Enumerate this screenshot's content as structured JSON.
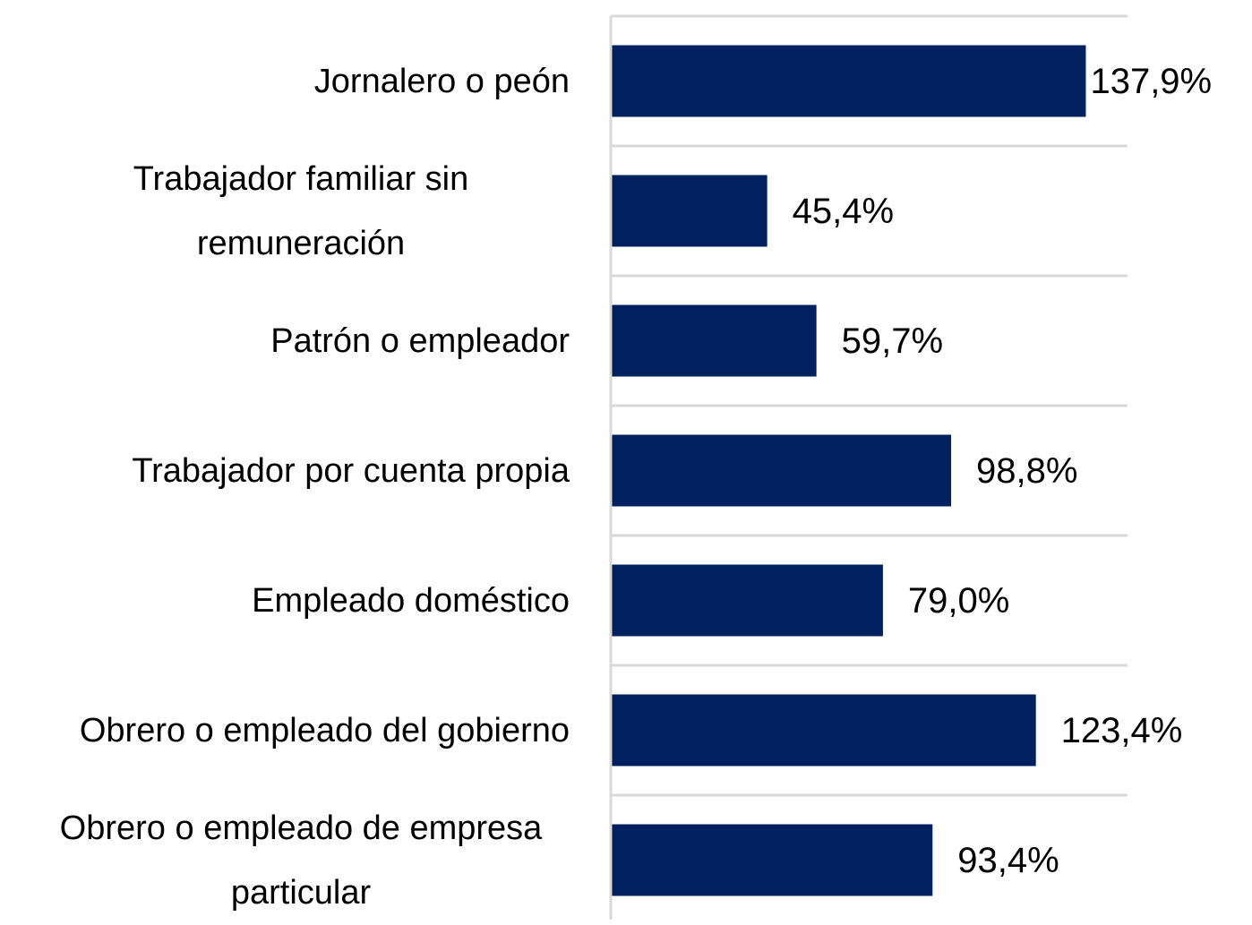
{
  "chart_data": {
    "type": "bar",
    "orientation": "horizontal",
    "categories": [
      "Jornalero o peón",
      "Trabajador familiar sin remuneración",
      "Patrón o empleador",
      "Trabajador por cuenta propia",
      "Empleado doméstico",
      "Obrero o empleado del gobierno",
      "Obrero o empleado de empresa particular"
    ],
    "values": [
      137.9,
      45.4,
      59.7,
      98.8,
      79.0,
      123.4,
      93.4
    ],
    "value_labels": [
      "137,9%",
      "45,4%",
      "59,7%",
      "98,8%",
      "79,0%",
      "123,4%",
      "93,4%"
    ],
    "color": "#002060",
    "xlim": [
      0,
      150
    ],
    "grid": true
  }
}
